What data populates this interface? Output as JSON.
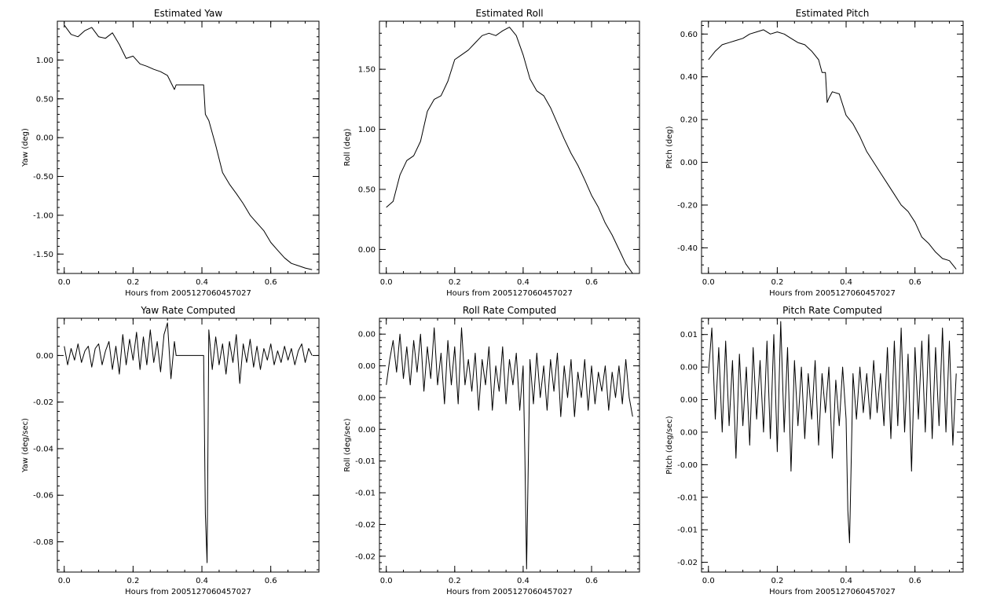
{
  "chart_data": [
    {
      "type": "line",
      "title": "Estimated Yaw",
      "xlabel": "Hours from 2005127060457027",
      "ylabel": "Yaw (deg)",
      "xlim": [
        -0.02,
        0.74
      ],
      "ylim": [
        -1.75,
        1.5
      ],
      "xticks": [
        0.0,
        0.2,
        0.4,
        0.6
      ],
      "xtick_labels": [
        "0.0",
        "0.2",
        "0.4",
        "0.6"
      ],
      "yticks": [
        -1.5,
        -1.0,
        -0.5,
        0.0,
        0.5,
        1.0
      ],
      "ytick_labels": [
        "-1.50",
        "-1.00",
        "-0.50",
        "0.00",
        "0.50",
        "1.00"
      ],
      "grid": false,
      "series": [
        {
          "x": [
            0.0,
            0.02,
            0.04,
            0.06,
            0.08,
            0.1,
            0.12,
            0.14,
            0.16,
            0.18,
            0.2,
            0.22,
            0.24,
            0.26,
            0.28,
            0.3,
            0.32,
            0.325,
            0.4,
            0.405,
            0.41,
            0.42,
            0.44,
            0.46,
            0.48,
            0.5,
            0.52,
            0.54,
            0.56,
            0.58,
            0.6,
            0.62,
            0.64,
            0.66,
            0.68,
            0.7,
            0.72
          ],
          "y": [
            1.45,
            1.33,
            1.3,
            1.38,
            1.42,
            1.3,
            1.28,
            1.35,
            1.2,
            1.02,
            1.05,
            0.95,
            0.92,
            0.88,
            0.85,
            0.8,
            0.62,
            0.68,
            0.68,
            0.68,
            0.3,
            0.22,
            -0.1,
            -0.45,
            -0.6,
            -0.72,
            -0.85,
            -1.0,
            -1.1,
            -1.2,
            -1.35,
            -1.45,
            -1.55,
            -1.62,
            -1.65,
            -1.68,
            -1.7
          ]
        }
      ]
    },
    {
      "type": "line",
      "title": "Estimated Roll",
      "xlabel": "Hours from 2005127060457027",
      "ylabel": "Roll (deg)",
      "xlim": [
        -0.02,
        0.74
      ],
      "ylim": [
        -0.2,
        1.9
      ],
      "xticks": [
        0.0,
        0.2,
        0.4,
        0.6
      ],
      "xtick_labels": [
        "0.0",
        "0.2",
        "0.4",
        "0.6"
      ],
      "yticks": [
        0.0,
        0.5,
        1.0,
        1.5
      ],
      "ytick_labels": [
        "0.00",
        "0.50",
        "1.00",
        "1.50"
      ],
      "grid": false,
      "series": [
        {
          "x": [
            0.0,
            0.02,
            0.04,
            0.06,
            0.08,
            0.1,
            0.12,
            0.14,
            0.16,
            0.18,
            0.2,
            0.22,
            0.24,
            0.26,
            0.28,
            0.3,
            0.32,
            0.34,
            0.36,
            0.38,
            0.4,
            0.42,
            0.44,
            0.46,
            0.48,
            0.5,
            0.52,
            0.54,
            0.56,
            0.58,
            0.6,
            0.62,
            0.64,
            0.66,
            0.68,
            0.7,
            0.72
          ],
          "y": [
            0.35,
            0.4,
            0.62,
            0.74,
            0.78,
            0.9,
            1.15,
            1.25,
            1.28,
            1.4,
            1.58,
            1.62,
            1.66,
            1.72,
            1.78,
            1.8,
            1.78,
            1.82,
            1.85,
            1.78,
            1.62,
            1.42,
            1.32,
            1.28,
            1.18,
            1.05,
            0.92,
            0.8,
            0.7,
            0.58,
            0.45,
            0.35,
            0.22,
            0.12,
            0.0,
            -0.12,
            -0.2
          ]
        }
      ]
    },
    {
      "type": "line",
      "title": "Estimated Pitch",
      "xlabel": "Hours from 2005127060457027",
      "ylabel": "Pitch (deg)",
      "xlim": [
        -0.02,
        0.74
      ],
      "ylim": [
        -0.52,
        0.66
      ],
      "xticks": [
        0.0,
        0.2,
        0.4,
        0.6
      ],
      "xtick_labels": [
        "0.0",
        "0.2",
        "0.4",
        "0.6"
      ],
      "yticks": [
        -0.4,
        -0.2,
        0.0,
        0.2,
        0.4,
        0.6
      ],
      "ytick_labels": [
        "-0.40",
        "-0.20",
        "0.00",
        "0.20",
        "0.40",
        "0.60"
      ],
      "grid": false,
      "series": [
        {
          "x": [
            0.0,
            0.02,
            0.04,
            0.06,
            0.08,
            0.1,
            0.12,
            0.14,
            0.16,
            0.18,
            0.2,
            0.22,
            0.24,
            0.26,
            0.28,
            0.3,
            0.32,
            0.33,
            0.34,
            0.345,
            0.35,
            0.36,
            0.38,
            0.4,
            0.42,
            0.44,
            0.46,
            0.48,
            0.5,
            0.52,
            0.54,
            0.56,
            0.58,
            0.6,
            0.62,
            0.64,
            0.66,
            0.68,
            0.7,
            0.72
          ],
          "y": [
            0.48,
            0.52,
            0.55,
            0.56,
            0.57,
            0.58,
            0.6,
            0.61,
            0.62,
            0.6,
            0.61,
            0.6,
            0.58,
            0.56,
            0.55,
            0.52,
            0.48,
            0.42,
            0.42,
            0.28,
            0.3,
            0.33,
            0.32,
            0.22,
            0.18,
            0.12,
            0.05,
            0.0,
            -0.05,
            -0.1,
            -0.15,
            -0.2,
            -0.23,
            -0.28,
            -0.35,
            -0.38,
            -0.42,
            -0.45,
            -0.46,
            -0.5
          ]
        }
      ]
    },
    {
      "type": "line",
      "title": "Yaw Rate Computed",
      "xlabel": "Hours from 2005127060457027",
      "ylabel": "Yaw (deg/sec)",
      "xlim": [
        -0.02,
        0.74
      ],
      "ylim": [
        -0.093,
        0.016
      ],
      "xticks": [
        0.0,
        0.2,
        0.4,
        0.6
      ],
      "xtick_labels": [
        "0.0",
        "0.2",
        "0.4",
        "0.6"
      ],
      "yticks": [
        -0.08,
        -0.06,
        -0.04,
        -0.02,
        0.0
      ],
      "ytick_labels": [
        "-0.08",
        "-0.06",
        "-0.04",
        "-0.02",
        "0.00"
      ],
      "grid": false,
      "series": [
        {
          "x": [
            0.0,
            0.01,
            0.02,
            0.03,
            0.04,
            0.05,
            0.06,
            0.07,
            0.08,
            0.09,
            0.1,
            0.11,
            0.12,
            0.13,
            0.14,
            0.15,
            0.16,
            0.17,
            0.18,
            0.19,
            0.2,
            0.21,
            0.22,
            0.23,
            0.24,
            0.25,
            0.26,
            0.27,
            0.28,
            0.29,
            0.3,
            0.31,
            0.32,
            0.325,
            0.405,
            0.41,
            0.415,
            0.42,
            0.43,
            0.44,
            0.45,
            0.46,
            0.47,
            0.48,
            0.49,
            0.5,
            0.51,
            0.52,
            0.53,
            0.54,
            0.55,
            0.56,
            0.57,
            0.58,
            0.59,
            0.6,
            0.61,
            0.62,
            0.63,
            0.64,
            0.65,
            0.66,
            0.67,
            0.68,
            0.69,
            0.7,
            0.71,
            0.72
          ],
          "y": [
            0.004,
            -0.004,
            0.003,
            -0.002,
            0.005,
            -0.003,
            0.002,
            0.004,
            -0.005,
            0.003,
            0.005,
            -0.004,
            0.002,
            0.006,
            -0.006,
            0.004,
            -0.008,
            0.009,
            -0.004,
            0.007,
            -0.002,
            0.01,
            -0.006,
            0.008,
            -0.004,
            0.011,
            -0.003,
            0.006,
            -0.007,
            0.009,
            0.014,
            -0.01,
            0.006,
            0.0,
            0.0,
            -0.068,
            -0.089,
            0.011,
            -0.006,
            0.008,
            -0.004,
            0.005,
            -0.008,
            0.006,
            -0.003,
            0.009,
            -0.012,
            0.005,
            -0.003,
            0.007,
            -0.005,
            0.004,
            -0.006,
            0.003,
            -0.002,
            0.005,
            -0.004,
            0.002,
            -0.003,
            0.004,
            -0.002,
            0.003,
            -0.004,
            0.002,
            0.005,
            -0.003,
            0.003,
            0.0
          ]
        }
      ]
    },
    {
      "type": "line",
      "title": "Roll Rate Computed",
      "xlabel": "Hours from 2005127060457027",
      "ylabel": "Roll (deg/sec)",
      "xlim": [
        -0.02,
        0.74
      ],
      "ylim": [
        -0.0275,
        0.0125
      ],
      "xticks": [
        0.0,
        0.2,
        0.4,
        0.6
      ],
      "xtick_labels": [
        "0.0",
        "0.2",
        "0.4",
        "0.6"
      ],
      "yticks": [
        -0.025,
        -0.02,
        -0.015,
        -0.01,
        -0.005,
        0.0,
        0.005,
        0.01
      ],
      "ytick_labels": [
        "-0.02",
        "-0.02",
        "-0.01",
        "-0.01",
        "0.00",
        "0.00",
        "0.00",
        "0.00"
      ],
      "grid": false,
      "series": [
        {
          "x": [
            0.0,
            0.01,
            0.02,
            0.03,
            0.04,
            0.05,
            0.06,
            0.07,
            0.08,
            0.09,
            0.1,
            0.11,
            0.12,
            0.13,
            0.14,
            0.15,
            0.16,
            0.17,
            0.18,
            0.19,
            0.2,
            0.21,
            0.22,
            0.23,
            0.24,
            0.25,
            0.26,
            0.27,
            0.28,
            0.29,
            0.3,
            0.31,
            0.32,
            0.33,
            0.34,
            0.35,
            0.36,
            0.37,
            0.38,
            0.39,
            0.4,
            0.405,
            0.41,
            0.42,
            0.43,
            0.44,
            0.45,
            0.46,
            0.47,
            0.48,
            0.49,
            0.5,
            0.51,
            0.52,
            0.53,
            0.54,
            0.55,
            0.56,
            0.57,
            0.58,
            0.59,
            0.6,
            0.61,
            0.62,
            0.63,
            0.64,
            0.65,
            0.66,
            0.67,
            0.68,
            0.69,
            0.7,
            0.71,
            0.72
          ],
          "y": [
            0.002,
            0.006,
            0.009,
            0.004,
            0.01,
            0.003,
            0.008,
            0.002,
            0.009,
            0.004,
            0.01,
            0.001,
            0.008,
            0.003,
            0.011,
            0.002,
            0.007,
            -0.001,
            0.009,
            0.002,
            0.008,
            -0.001,
            0.011,
            0.002,
            0.006,
            0.001,
            0.007,
            -0.002,
            0.006,
            0.002,
            0.008,
            -0.002,
            0.005,
            0.001,
            0.008,
            -0.001,
            0.006,
            0.002,
            0.007,
            -0.002,
            0.005,
            -0.009,
            -0.027,
            0.006,
            -0.001,
            0.007,
            0.0,
            0.005,
            -0.002,
            0.006,
            0.001,
            0.007,
            -0.003,
            0.005,
            0.0,
            0.006,
            -0.003,
            0.004,
            0.0,
            0.006,
            -0.002,
            0.005,
            -0.001,
            0.004,
            0.001,
            0.005,
            -0.002,
            0.004,
            0.0,
            0.005,
            -0.001,
            0.006,
            0.0,
            -0.003
          ]
        }
      ]
    },
    {
      "type": "line",
      "title": "Pitch Rate Computed",
      "xlabel": "Hours from 2005127060457027",
      "ylabel": "Pitch (deg/sec)",
      "xlim": [
        -0.02,
        0.74
      ],
      "ylim": [
        -0.0265,
        0.0125
      ],
      "xticks": [
        0.0,
        0.2,
        0.4,
        0.6
      ],
      "xtick_labels": [
        "0.0",
        "0.2",
        "0.4",
        "0.6"
      ],
      "yticks": [
        -0.025,
        -0.02,
        -0.015,
        -0.01,
        -0.005,
        0.0,
        0.005,
        0.01
      ],
      "ytick_labels": [
        "-0.02",
        "-0.01",
        "-0.01",
        "-0.00",
        "0.00",
        "0.00",
        "0.00",
        "0.01"
      ],
      "grid": false,
      "series": [
        {
          "x": [
            0.0,
            0.01,
            0.02,
            0.03,
            0.04,
            0.05,
            0.06,
            0.07,
            0.08,
            0.09,
            0.1,
            0.11,
            0.12,
            0.13,
            0.14,
            0.15,
            0.16,
            0.17,
            0.18,
            0.19,
            0.2,
            0.21,
            0.22,
            0.23,
            0.24,
            0.25,
            0.26,
            0.27,
            0.28,
            0.29,
            0.3,
            0.31,
            0.32,
            0.33,
            0.34,
            0.35,
            0.36,
            0.37,
            0.38,
            0.39,
            0.4,
            0.405,
            0.41,
            0.42,
            0.43,
            0.44,
            0.45,
            0.46,
            0.47,
            0.48,
            0.49,
            0.5,
            0.51,
            0.52,
            0.53,
            0.54,
            0.55,
            0.56,
            0.57,
            0.58,
            0.59,
            0.6,
            0.61,
            0.62,
            0.63,
            0.64,
            0.65,
            0.66,
            0.67,
            0.68,
            0.69,
            0.7,
            0.71,
            0.72
          ],
          "y": [
            0.004,
            0.011,
            -0.003,
            0.008,
            -0.005,
            0.009,
            -0.004,
            0.006,
            -0.009,
            0.007,
            -0.004,
            0.005,
            -0.007,
            0.008,
            -0.003,
            0.006,
            -0.005,
            0.009,
            -0.006,
            0.01,
            -0.008,
            0.012,
            -0.005,
            0.008,
            -0.011,
            0.006,
            -0.004,
            0.005,
            -0.006,
            0.004,
            -0.003,
            0.006,
            -0.007,
            0.004,
            -0.002,
            0.005,
            -0.009,
            0.003,
            -0.004,
            0.005,
            -0.003,
            -0.017,
            -0.022,
            0.004,
            -0.003,
            0.005,
            -0.002,
            0.004,
            -0.003,
            0.006,
            -0.002,
            0.004,
            -0.004,
            0.008,
            -0.006,
            0.009,
            -0.004,
            0.011,
            -0.005,
            0.007,
            -0.011,
            0.008,
            -0.003,
            0.009,
            -0.005,
            0.01,
            -0.006,
            0.008,
            -0.004,
            0.011,
            -0.005,
            0.009,
            -0.007,
            0.004
          ]
        }
      ]
    }
  ]
}
